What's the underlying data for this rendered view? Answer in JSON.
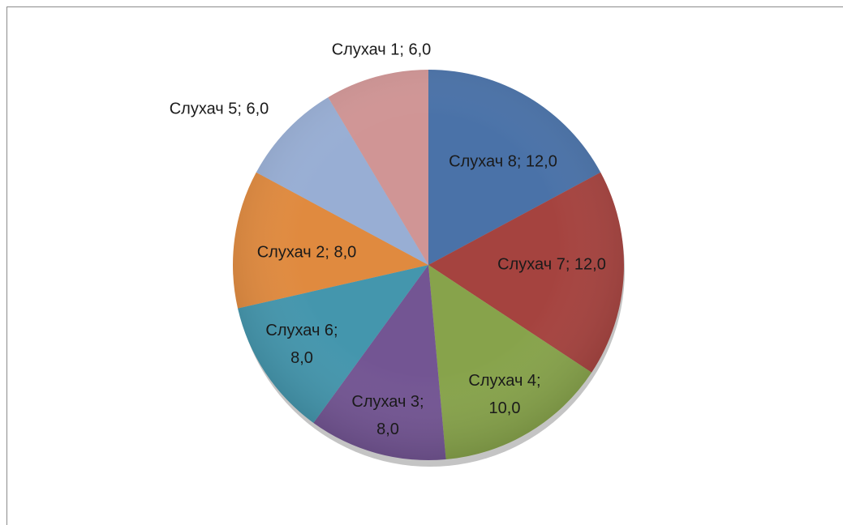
{
  "chart_data": {
    "type": "pie",
    "values": [
      12,
      12,
      10,
      8,
      8,
      8,
      6,
      6
    ],
    "value_labels": [
      "Слухач 8; 12,0",
      "Слухач 7; 12,0",
      "Слухач 4; 10,0",
      "Слухач 3; 8,0",
      "Слухач 6; 8,0",
      "Слухач 2; 8,0",
      "Слухач 5; 6,0",
      "Слухач 1; 6,0"
    ],
    "colors": [
      "#4a72a8",
      "#a5433f",
      "#87a34b",
      "#735593",
      "#4496ad",
      "#e08a3f",
      "#98aed4",
      "#d09595"
    ]
  }
}
